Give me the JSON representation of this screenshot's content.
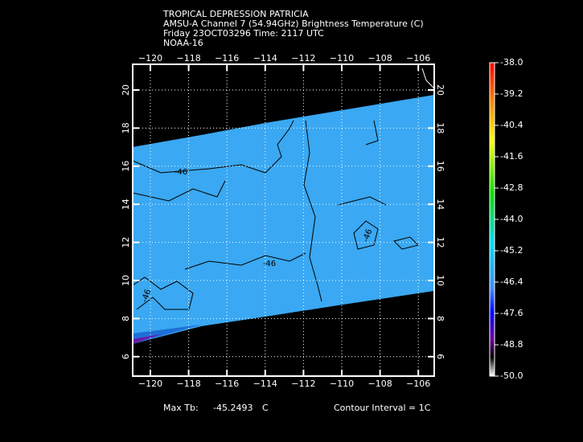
{
  "header": {
    "lines": [
      "TROPICAL DEPRESSION PATRICIA",
      "AMSU-A Channel 7 (54.94GHz) Brightness Temperature (C)",
      "Friday 23OCT03296 Time: 2117 UTC",
      "NOAA-16"
    ]
  },
  "map": {
    "lon_ticks": [
      "−120",
      "−118",
      "−116",
      "−114",
      "−112",
      "−110",
      "−108",
      "−106"
    ],
    "lat_ticks": [
      "20",
      "18",
      "16",
      "14",
      "12",
      "10",
      "8",
      "6"
    ]
  },
  "contour_labels": [
    "-46",
    "-46",
    "-46",
    "-46"
  ],
  "colorbar": {
    "ticks": [
      "-38.0",
      "-39.2",
      "-40.4",
      "-41.6",
      "-42.8",
      "-44.0",
      "-45.2",
      "-46.4",
      "-47.6",
      "-48.8",
      "-50.0"
    ]
  },
  "footer": {
    "max_label": "Max Tb:",
    "max_value": "-45.2493",
    "unit": "C",
    "contour_interval": "Contour Interval = 1C"
  }
}
